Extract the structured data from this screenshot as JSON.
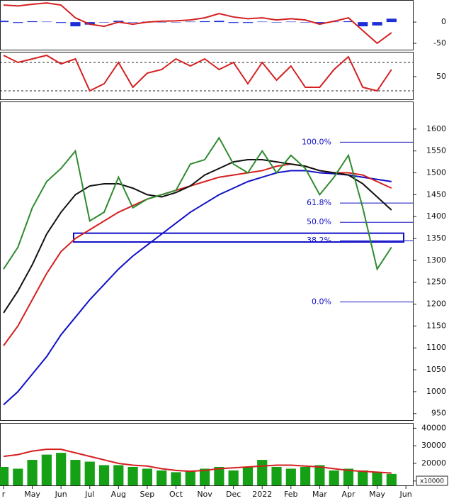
{
  "chart_data": {
    "type": "stock",
    "categories": [
      "r",
      null,
      "May",
      null,
      "Jun",
      null,
      "Jul",
      null,
      "Aug",
      null,
      "Sep",
      null,
      "Oct",
      null,
      "Nov",
      null,
      "Dec",
      null,
      "2022",
      null,
      "Feb",
      null,
      "Mar",
      null,
      "Apr",
      null,
      "May",
      null,
      "Jun"
    ],
    "panels": [
      {
        "ylim": [
          -65,
          52
        ],
        "yticks": [
          0,
          -50
        ],
        "series": [
          {
            "kind": "bar",
            "color": "#1f2fd6",
            "values": [
              3,
              -2,
              2,
              1,
              -2,
              -10,
              -6,
              -1,
              3,
              -1,
              1,
              0,
              0,
              1,
              2,
              3,
              -2,
              -2,
              1,
              -1,
              1,
              -1,
              -3,
              1,
              2,
              -10,
              -8,
              8,
              null
            ]
          },
          {
            "kind": "line",
            "color": "#d42020",
            "values": [
              40,
              38,
              42,
              45,
              40,
              10,
              -5,
              -10,
              0,
              -5,
              0,
              2,
              3,
              5,
              10,
              20,
              12,
              8,
              10,
              5,
              8,
              5,
              -5,
              2,
              10,
              -20,
              -50,
              -25,
              null
            ]
          }
        ]
      },
      {
        "ylim": [
          18,
          85
        ],
        "yticks": [
          50
        ],
        "levels": [
          70,
          30
        ],
        "series": [
          {
            "kind": "line",
            "color": "#d42020",
            "values": [
              80,
              70,
              75,
              80,
              68,
              75,
              30,
              40,
              70,
              35,
              55,
              60,
              75,
              65,
              75,
              60,
              70,
              40,
              70,
              45,
              65,
              35,
              35,
              60,
              78,
              35,
              30,
              60,
              null
            ]
          }
        ]
      },
      {
        "ylim": [
          935,
          1663
        ],
        "yticks": [
          950,
          1000,
          1050,
          1100,
          1150,
          1200,
          1250,
          1300,
          1350,
          1400,
          1450,
          1500,
          1550,
          1600
        ],
        "zone": [
          1342,
          1362
        ],
        "zone_color": "#1010c8",
        "fibonacci": [
          {
            "label": "100.0%",
            "value": 1570
          },
          {
            "label": "61.8%",
            "value": 1431
          },
          {
            "label": "50.0%",
            "value": 1387
          },
          {
            "label": "38.2%",
            "value": 1345
          },
          {
            "label": "0.0%",
            "value": 1205
          }
        ],
        "series": [
          {
            "kind": "line",
            "color": "#1010c8",
            "values": [
              970,
              1000,
              1040,
              1080,
              1130,
              1170,
              1210,
              1245,
              1280,
              1310,
              1335,
              1360,
              1385,
              1410,
              1430,
              1450,
              1465,
              1480,
              1490,
              1500,
              1505,
              1505,
              1500,
              1498,
              1495,
              1490,
              1485,
              1480,
              null
            ]
          },
          {
            "kind": "line",
            "color": "#d42020",
            "values": [
              1105,
              1150,
              1210,
              1270,
              1320,
              1350,
              1370,
              1390,
              1410,
              1425,
              1440,
              1450,
              1460,
              1470,
              1480,
              1490,
              1495,
              1500,
              1505,
              1515,
              1520,
              1515,
              1505,
              1500,
              1500,
              1495,
              1480,
              1465,
              null
            ]
          },
          {
            "kind": "line",
            "color": "#111111",
            "values": [
              1180,
              1230,
              1290,
              1360,
              1410,
              1450,
              1470,
              1475,
              1475,
              1465,
              1450,
              1445,
              1455,
              1470,
              1495,
              1510,
              1525,
              1530,
              1530,
              1525,
              1520,
              1515,
              1505,
              1500,
              1495,
              1475,
              1445,
              1415,
              null
            ]
          },
          {
            "kind": "line",
            "color": "#2e8b2e",
            "values": [
              1280,
              1330,
              1420,
              1480,
              1510,
              1550,
              1390,
              1410,
              1490,
              1420,
              1440,
              1450,
              1460,
              1520,
              1530,
              1580,
              1520,
              1500,
              1550,
              1500,
              1540,
              1510,
              1450,
              1490,
              1540,
              1420,
              1280,
              1330,
              null
            ]
          }
        ]
      },
      {
        "ylim": [
          7500,
          43000
        ],
        "yticks": [
          40000,
          30000,
          20000,
          10000
        ],
        "unit_label": "x10000",
        "series": [
          {
            "kind": "bar",
            "color": "#16a016",
            "values": [
              18000,
              17000,
              22000,
              25000,
              26000,
              22000,
              21000,
              19000,
              19000,
              18000,
              17000,
              16000,
              15000,
              16000,
              17000,
              18000,
              16000,
              18000,
              22000,
              18000,
              17000,
              18000,
              19000,
              16000,
              17000,
              16000,
              15000,
              14000,
              null
            ]
          },
          {
            "kind": "line",
            "color": "#d42020",
            "values": [
              24000,
              25000,
              27000,
              28000,
              28000,
              26000,
              24000,
              22000,
              20000,
              19000,
              18500,
              17000,
              16000,
              15500,
              16000,
              17000,
              17500,
              18000,
              18500,
              19000,
              19000,
              18500,
              18000,
              17000,
              16000,
              15500,
              15000,
              14500,
              null
            ]
          }
        ]
      }
    ]
  }
}
